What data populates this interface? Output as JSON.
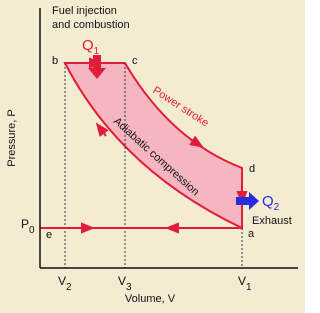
{
  "header": {
    "line1": "Fuel injection",
    "line2": "and combustion"
  },
  "heat_in": {
    "base": "Q",
    "sub": "1"
  },
  "heat_out": {
    "base": "Q",
    "sub": "2"
  },
  "process_labels": {
    "power": "Power stroke",
    "compression": "Adiabatic compression",
    "exhaust": "Exhaust"
  },
  "axes": {
    "y_label": "Pressure, P",
    "x_label": "Volume, V"
  },
  "points": {
    "a": "a",
    "b": "b",
    "c": "c",
    "d": "d",
    "e": "e"
  },
  "pressure_tick": {
    "base": "P",
    "sub": "0"
  },
  "volume_ticks": [
    {
      "base": "V",
      "sub": "2"
    },
    {
      "base": "V",
      "sub": "3"
    },
    {
      "base": "V",
      "sub": "1"
    }
  ]
}
